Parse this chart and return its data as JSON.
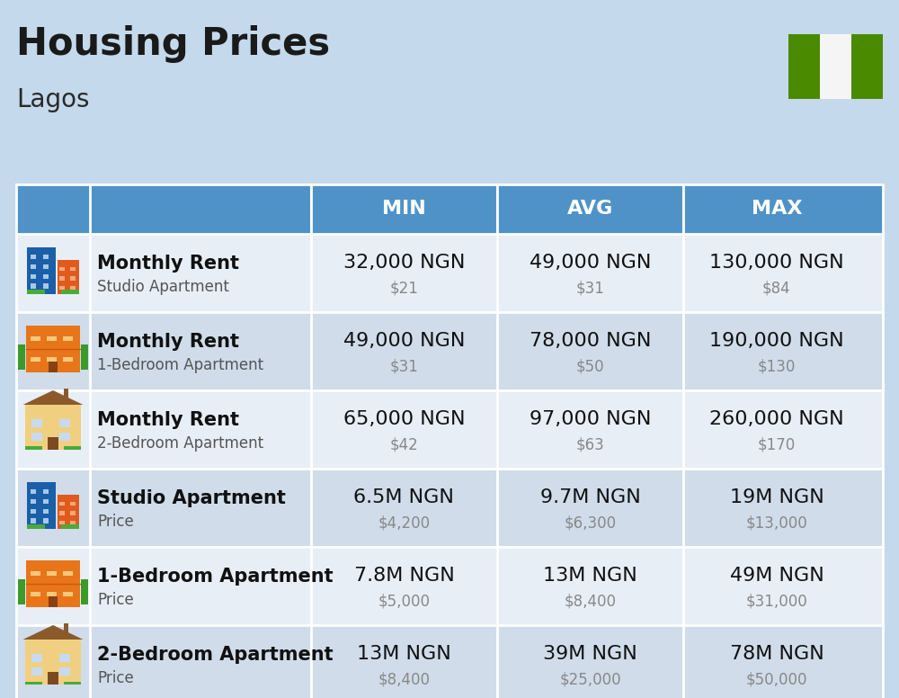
{
  "title": "Housing Prices",
  "subtitle": "Lagos",
  "background_color": "#c5d9ec",
  "header_bg_color": "#4f92c8",
  "header_text_color": "#ffffff",
  "row_bg_light": "#e8eef6",
  "row_bg_dark": "#d0dcea",
  "flag_green": "#4a8a00",
  "flag_white": "#f5f5f5",
  "col_headers": [
    "MIN",
    "AVG",
    "MAX"
  ],
  "rows": [
    {
      "bold_label": "Monthly Rent",
      "sub_label": "Studio Apartment",
      "emoji_type": "studio_blue",
      "min_ngn": "32,000 NGN",
      "min_usd": "$21",
      "avg_ngn": "49,000 NGN",
      "avg_usd": "$31",
      "max_ngn": "130,000 NGN",
      "max_usd": "$84"
    },
    {
      "bold_label": "Monthly Rent",
      "sub_label": "1-Bedroom Apartment",
      "emoji_type": "onebr_orange",
      "min_ngn": "49,000 NGN",
      "min_usd": "$31",
      "avg_ngn": "78,000 NGN",
      "avg_usd": "$50",
      "max_ngn": "190,000 NGN",
      "max_usd": "$130"
    },
    {
      "bold_label": "Monthly Rent",
      "sub_label": "2-Bedroom Apartment",
      "emoji_type": "twobr_tan",
      "min_ngn": "65,000 NGN",
      "min_usd": "$42",
      "avg_ngn": "97,000 NGN",
      "avg_usd": "$63",
      "max_ngn": "260,000 NGN",
      "max_usd": "$170"
    },
    {
      "bold_label": "Studio Apartment",
      "sub_label": "Price",
      "emoji_type": "studio_blue",
      "min_ngn": "6.5M NGN",
      "min_usd": "$4,200",
      "avg_ngn": "9.7M NGN",
      "avg_usd": "$6,300",
      "max_ngn": "19M NGN",
      "max_usd": "$13,000"
    },
    {
      "bold_label": "1-Bedroom Apartment",
      "sub_label": "Price",
      "emoji_type": "onebr_orange",
      "min_ngn": "7.8M NGN",
      "min_usd": "$5,000",
      "avg_ngn": "13M NGN",
      "avg_usd": "$8,400",
      "max_ngn": "49M NGN",
      "max_usd": "$31,000"
    },
    {
      "bold_label": "2-Bedroom Apartment",
      "sub_label": "Price",
      "emoji_type": "twobr_tan",
      "min_ngn": "13M NGN",
      "min_usd": "$8,400",
      "avg_ngn": "39M NGN",
      "avg_usd": "$25,000",
      "max_ngn": "78M NGN",
      "max_usd": "$50,000"
    }
  ],
  "ngn_fontsize": 16,
  "usd_fontsize": 12,
  "header_fontsize": 16,
  "label_bold_fontsize": 15,
  "label_sub_fontsize": 12,
  "title_fontsize": 30,
  "subtitle_fontsize": 20
}
